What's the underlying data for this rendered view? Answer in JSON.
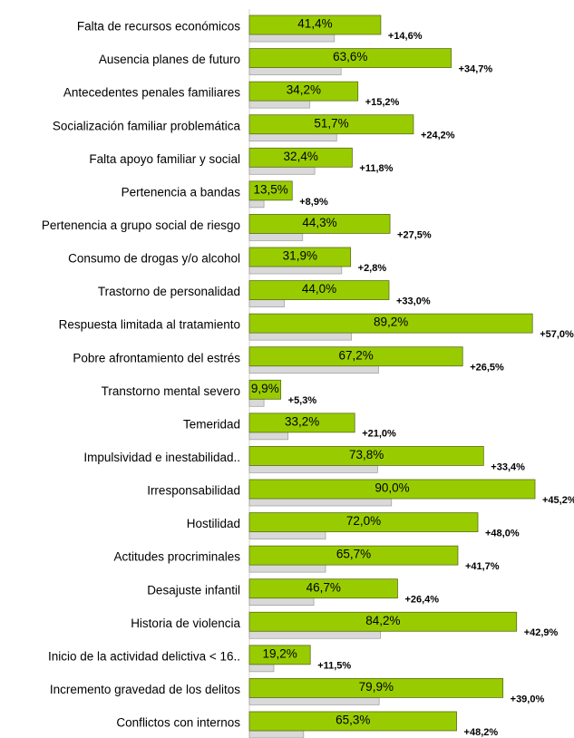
{
  "chart_data": {
    "type": "hbar",
    "categories": [
      "Falta de recursos económicos",
      "Ausencia planes de futuro",
      "Antecedentes penales familiares",
      "Socialización familiar problemática",
      "Falta apoyo familiar y social",
      "Pertenencia a bandas",
      "Pertenencia a grupo social de riesgo",
      "Consumo de drogas y/o alcohol",
      "Trastorno de personalidad",
      "Respuesta limitada al tratamiento",
      "Pobre afrontamiento del estrés",
      "Transtorno mental severo",
      "Temeridad",
      "Impulsividad e inestabilidad..",
      "Irresponsabilidad",
      "Hostilidad",
      "Actitudes procriminales",
      "Desajuste infantil",
      "Historia de violencia",
      "Inicio de la actividad delictiva < 16..",
      "Incremento gravedad de los delitos",
      "Conflictos con internos"
    ],
    "series": [
      {
        "color": "#99cc00",
        "values": [
          41.4,
          63.6,
          34.2,
          51.7,
          32.4,
          13.5,
          44.3,
          31.9,
          44.0,
          89.2,
          67.2,
          9.9,
          33.2,
          73.8,
          90.0,
          72.0,
          65.7,
          46.7,
          84.2,
          19.2,
          79.9,
          65.3
        ],
        "value_labels": [
          "41,4%",
          "63,6%",
          "34,2%",
          "51,7%",
          "32,4%",
          "13,5%",
          "44,3%",
          "31,9%",
          "44,0%",
          "89,2%",
          "67,2%",
          "9,9%",
          "33,2%",
          "73,8%",
          "90,0%",
          "72,0%",
          "65,7%",
          "46,7%",
          "84,2%",
          "19,2%",
          "79,9%",
          "65,3%"
        ]
      },
      {
        "color": "#d9d9d9",
        "values": [
          26.8,
          28.9,
          19.0,
          27.5,
          20.6,
          4.6,
          16.8,
          29.1,
          11.0,
          32.2,
          40.7,
          4.6,
          12.2,
          40.4,
          44.8,
          24.0,
          24.0,
          20.3,
          41.3,
          7.7,
          40.9,
          17.1
        ]
      }
    ],
    "differences": {
      "values": [
        14.6,
        34.7,
        15.2,
        24.2,
        11.8,
        8.9,
        27.5,
        2.8,
        33.0,
        57.0,
        26.5,
        5.3,
        21.0,
        33.4,
        45.2,
        48.0,
        41.7,
        26.4,
        42.9,
        11.5,
        39.0,
        48.2
      ],
      "value_labels": [
        "+14,6%",
        "+34,7%",
        "+15,2%",
        "+24,2%",
        "+11,8%",
        "+8,9%",
        "+27,5%",
        "+2,8%",
        "+33,0%",
        "+57,0%",
        "+26,5%",
        "+5,3%",
        "+21,0%",
        "+33,4%",
        "+45,2%",
        "+48,0%",
        "+41,7%",
        "+26,4%",
        "+42,9%",
        "+11,5%",
        "+39,0%",
        "+48,2%"
      ]
    },
    "xlim": [
      0,
      100
    ]
  }
}
